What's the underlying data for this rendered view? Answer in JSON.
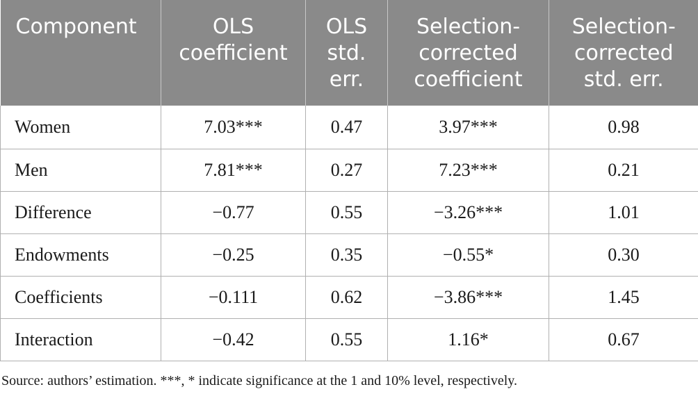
{
  "table": {
    "headers": [
      "Component",
      "OLS coefficient",
      "OLS std. err.",
      "Selection-corrected coefficient",
      "Selection-corrected std. err."
    ],
    "rows": [
      [
        "Women",
        "7.03***",
        "0.47",
        "3.97***",
        "0.98"
      ],
      [
        "Men",
        "7.81***",
        "0.27",
        "7.23***",
        "0.21"
      ],
      [
        "Difference",
        "−0.77",
        "0.55",
        "−3.26***",
        "1.01"
      ],
      [
        "Endowments",
        "−0.25",
        "0.35",
        "−0.55*",
        "0.30"
      ],
      [
        "Coefficients",
        "−0.111",
        "0.62",
        "−3.86***",
        "1.45"
      ],
      [
        "Interaction",
        "−0.42",
        "0.55",
        "1.16*",
        "0.67"
      ]
    ]
  },
  "footnote": "Source: authors’ estimation. ***, * indicate significance at the 1 and 10% level, respectively.",
  "colors": {
    "header_bg": "#8a8a8a",
    "header_text": "#ffffff",
    "border": "#b0b0b0"
  }
}
